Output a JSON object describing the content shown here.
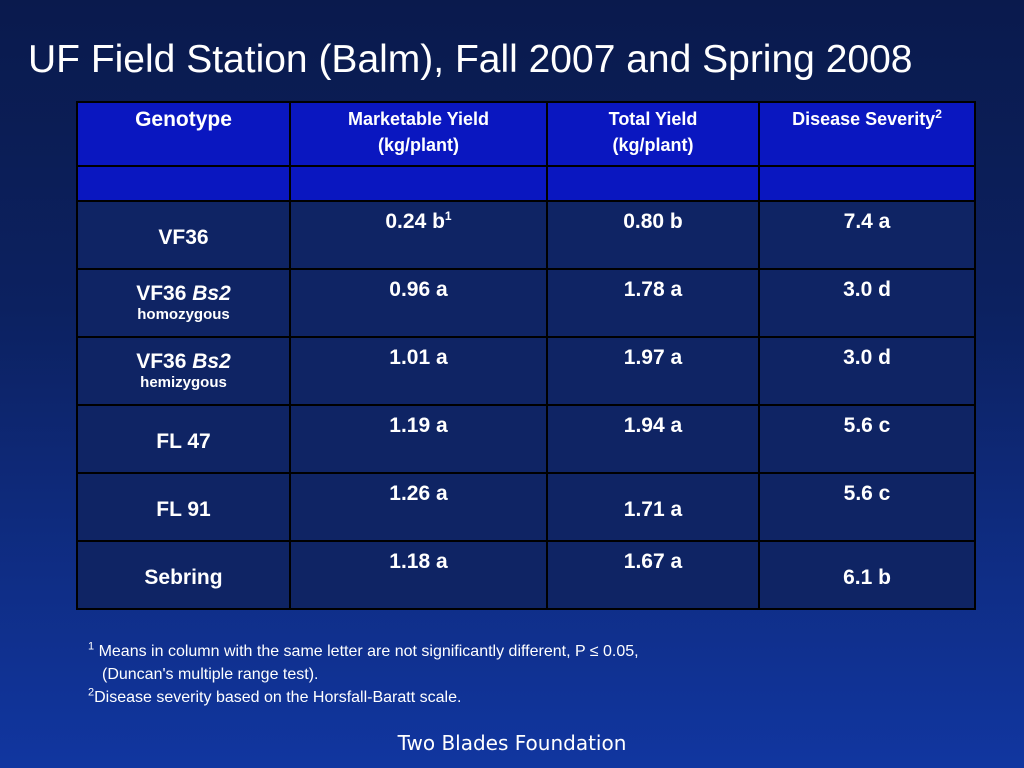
{
  "slide": {
    "title": "UF Field Station (Balm), Fall 2007 and Spring 2008",
    "footer": "Two Blades Foundation"
  },
  "table": {
    "headers": {
      "genotype": "Genotype",
      "marketable_yield_line1": "Marketable Yield",
      "marketable_yield_line2": "(kg/plant)",
      "total_yield_line1": "Total Yield",
      "total_yield_line2": "(kg/plant)",
      "disease_severity": "Disease Severity",
      "disease_severity_sup": "2"
    },
    "rows": [
      {
        "genotype": "VF36",
        "genotype_italic": "",
        "genotype_sub": "",
        "marketable": "0.24 b",
        "marketable_sup": "1",
        "total": "0.80 b",
        "disease": "7.4 a"
      },
      {
        "genotype": "VF36",
        "genotype_italic": "Bs2",
        "genotype_sub": "homozygous",
        "marketable": "0.96 a",
        "marketable_sup": "",
        "total": "1.78 a",
        "disease": "3.0 d"
      },
      {
        "genotype": "VF36",
        "genotype_italic": "Bs2",
        "genotype_sub": "hemizygous",
        "marketable": "1.01 a",
        "marketable_sup": "",
        "total": "1.97 a",
        "disease": "3.0 d"
      },
      {
        "genotype": "FL 47",
        "genotype_italic": "",
        "genotype_sub": "",
        "marketable": "1.19 a",
        "marketable_sup": "",
        "total": "1.94 a",
        "disease": "5.6 c"
      },
      {
        "genotype": "FL 91",
        "genotype_italic": "",
        "genotype_sub": "",
        "marketable": "1.26 a",
        "marketable_sup": "",
        "total": "1.71 a",
        "disease": "5.6 c"
      },
      {
        "genotype": "Sebring",
        "genotype_italic": "",
        "genotype_sub": "",
        "marketable": "1.18 a",
        "marketable_sup": "",
        "total": "1.67 a",
        "disease": "6.1 b"
      }
    ]
  },
  "footnotes": {
    "note1_marker": "1",
    "note1_line1": "Means in column with the same letter are not significantly different, P ≤ 0.05,",
    "note1_line2": "(Duncan's multiple range test).",
    "note2_marker": "2",
    "note2_text": "Disease severity based on the Horsfall-Baratt scale."
  }
}
